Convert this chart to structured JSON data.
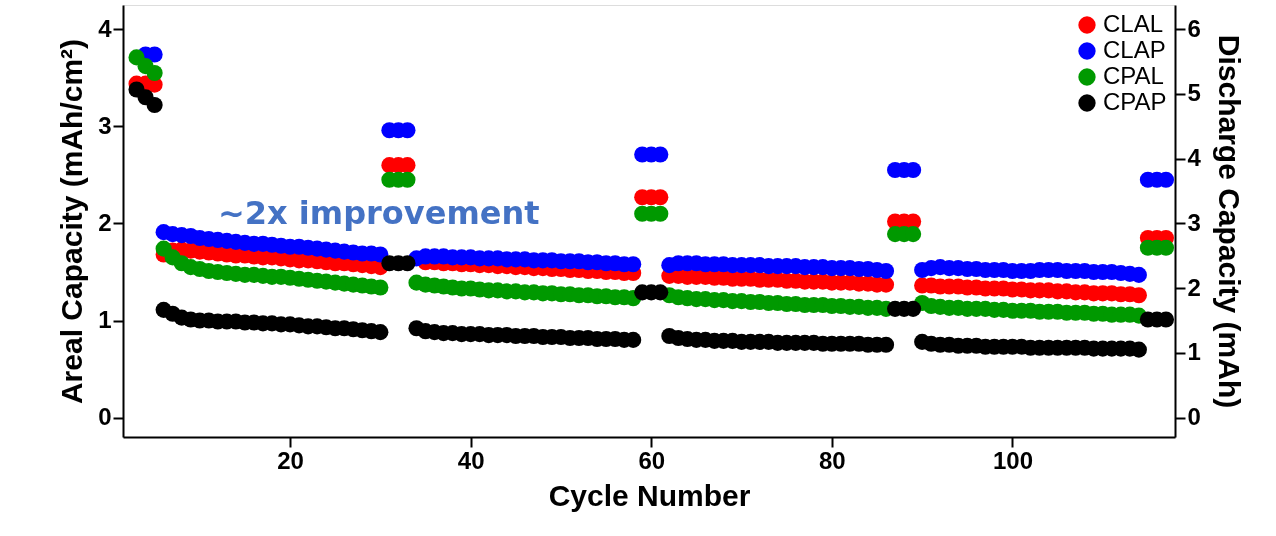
{
  "chart_data": {
    "type": "scatter",
    "xlabel": "Cycle Number",
    "ylabel": "Areal Capacity (mAh/cm²)",
    "y2label": "Discharge Capacity (mAh)",
    "annotations": [
      "~2x improvement"
    ],
    "x": [
      3,
      4,
      5,
      6,
      7,
      8,
      9,
      10,
      11,
      12,
      13,
      14,
      15,
      16,
      17,
      18,
      19,
      20,
      21,
      22,
      23,
      24,
      25,
      26,
      27,
      28,
      29,
      30,
      31,
      32,
      33,
      34,
      35,
      36,
      37,
      38,
      39,
      40,
      41,
      42,
      43,
      44,
      45,
      46,
      47,
      48,
      49,
      50,
      51,
      52,
      53,
      54,
      55,
      56,
      57,
      58,
      59,
      60,
      61,
      62,
      63,
      64,
      65,
      66,
      67,
      68,
      69,
      70,
      71,
      72,
      73,
      74,
      75,
      76,
      77,
      78,
      79,
      80,
      81,
      82,
      83,
      84,
      85,
      86,
      87,
      88,
      89,
      90,
      91,
      92,
      93,
      94,
      95,
      96,
      97,
      98,
      99,
      100,
      101,
      102,
      103,
      104,
      105,
      106,
      107,
      108,
      109,
      110,
      111,
      112,
      113,
      114,
      115,
      116,
      117
    ],
    "series": [
      {
        "name": "CLAL",
        "color": "#ff0000",
        "values": [
          3.44,
          3.44,
          3.43,
          1.68,
          1.72,
          1.73,
          1.72,
          1.71,
          1.7,
          1.69,
          1.68,
          1.67,
          1.67,
          1.66,
          1.65,
          1.65,
          1.64,
          1.63,
          1.62,
          1.62,
          1.61,
          1.6,
          1.59,
          1.59,
          1.58,
          1.57,
          1.56,
          1.55,
          2.6,
          2.6,
          2.6,
          null,
          1.6,
          1.6,
          1.59,
          1.59,
          1.58,
          1.58,
          1.57,
          1.57,
          1.56,
          1.56,
          1.55,
          1.55,
          1.54,
          1.54,
          1.53,
          1.53,
          1.52,
          1.52,
          1.51,
          1.51,
          1.5,
          1.5,
          1.49,
          1.49,
          2.27,
          2.27,
          2.27,
          1.46,
          1.46,
          1.45,
          1.45,
          1.45,
          1.44,
          1.44,
          1.43,
          1.43,
          1.43,
          1.42,
          1.42,
          1.42,
          1.41,
          1.41,
          1.4,
          1.4,
          1.4,
          1.39,
          1.39,
          1.39,
          1.38,
          1.38,
          1.37,
          1.37,
          2.02,
          2.02,
          2.02,
          1.36,
          1.36,
          1.35,
          1.35,
          1.35,
          1.34,
          1.34,
          1.33,
          1.33,
          1.33,
          1.32,
          1.32,
          1.31,
          1.31,
          1.31,
          1.3,
          1.3,
          1.29,
          1.29,
          1.28,
          1.28,
          1.28,
          1.27,
          1.27,
          1.26,
          1.85,
          1.85,
          1.85
        ]
      },
      {
        "name": "CLAP",
        "color": "#0000ff",
        "values": [
          null,
          3.74,
          3.74,
          1.91,
          1.89,
          1.88,
          1.87,
          1.85,
          1.84,
          1.83,
          1.82,
          1.81,
          1.8,
          1.79,
          1.79,
          1.78,
          1.77,
          1.76,
          1.76,
          1.75,
          1.74,
          1.73,
          1.72,
          1.71,
          1.7,
          1.69,
          1.69,
          1.68,
          2.96,
          2.96,
          2.96,
          1.64,
          1.66,
          1.66,
          1.66,
          1.65,
          1.65,
          1.65,
          1.64,
          1.64,
          1.64,
          1.63,
          1.63,
          1.63,
          1.62,
          1.62,
          1.62,
          1.61,
          1.61,
          1.61,
          1.6,
          1.6,
          1.59,
          1.59,
          1.58,
          1.58,
          2.71,
          2.71,
          2.71,
          1.57,
          1.59,
          1.59,
          1.59,
          1.58,
          1.58,
          1.58,
          1.57,
          1.57,
          1.57,
          1.57,
          1.56,
          1.56,
          1.56,
          1.56,
          1.55,
          1.55,
          1.55,
          1.54,
          1.54,
          1.54,
          1.53,
          1.53,
          1.52,
          1.51,
          2.55,
          2.55,
          2.55,
          1.52,
          1.54,
          1.55,
          1.54,
          1.54,
          1.53,
          1.53,
          1.52,
          1.52,
          1.52,
          1.51,
          1.51,
          1.51,
          1.52,
          1.52,
          1.52,
          1.51,
          1.51,
          1.51,
          1.5,
          1.5,
          1.5,
          1.49,
          1.48,
          1.47,
          2.45,
          2.45,
          2.45
        ]
      },
      {
        "name": "CPAL",
        "color": "#009900",
        "values": [
          3.71,
          3.62,
          3.55,
          1.74,
          1.65,
          1.59,
          1.55,
          1.53,
          1.51,
          1.5,
          1.49,
          1.48,
          1.47,
          1.47,
          1.46,
          1.45,
          1.45,
          1.44,
          1.43,
          1.42,
          1.41,
          1.4,
          1.39,
          1.38,
          1.37,
          1.36,
          1.35,
          1.34,
          2.45,
          2.45,
          2.45,
          1.39,
          1.37,
          1.36,
          1.35,
          1.34,
          1.33,
          1.33,
          1.32,
          1.31,
          1.31,
          1.3,
          1.3,
          1.29,
          1.29,
          1.28,
          1.28,
          1.27,
          1.27,
          1.26,
          1.26,
          1.25,
          1.25,
          1.24,
          1.24,
          1.23,
          2.1,
          2.1,
          2.1,
          1.26,
          1.24,
          1.23,
          1.22,
          1.22,
          1.21,
          1.21,
          1.2,
          1.2,
          1.19,
          1.19,
          1.18,
          1.18,
          1.17,
          1.17,
          1.16,
          1.16,
          1.16,
          1.15,
          1.15,
          1.14,
          1.14,
          1.13,
          1.13,
          1.12,
          1.89,
          1.89,
          1.89,
          1.18,
          1.15,
          1.14,
          1.13,
          1.13,
          1.12,
          1.12,
          1.12,
          1.11,
          1.11,
          1.1,
          1.1,
          1.1,
          1.09,
          1.09,
          1.09,
          1.08,
          1.08,
          1.08,
          1.07,
          1.07,
          1.06,
          1.06,
          1.06,
          1.05,
          1.75,
          1.75,
          1.75
        ]
      },
      {
        "name": "CPAP",
        "color": "#000000",
        "values": [
          3.38,
          3.3,
          3.22,
          1.11,
          1.07,
          1.03,
          1.01,
          1.0,
          1.0,
          0.99,
          0.99,
          0.99,
          0.98,
          0.98,
          0.97,
          0.97,
          0.96,
          0.96,
          0.95,
          0.94,
          0.94,
          0.93,
          0.92,
          0.92,
          0.91,
          0.9,
          0.89,
          0.88,
          1.59,
          1.59,
          1.59,
          0.92,
          0.89,
          0.88,
          0.87,
          0.87,
          0.86,
          0.86,
          0.86,
          0.85,
          0.85,
          0.85,
          0.84,
          0.84,
          0.84,
          0.83,
          0.83,
          0.83,
          0.82,
          0.82,
          0.82,
          0.81,
          0.81,
          0.81,
          0.8,
          0.8,
          1.29,
          1.29,
          1.29,
          0.84,
          0.82,
          0.81,
          0.8,
          0.8,
          0.79,
          0.79,
          0.79,
          0.78,
          0.78,
          0.78,
          0.78,
          0.77,
          0.77,
          0.77,
          0.77,
          0.77,
          0.76,
          0.76,
          0.76,
          0.76,
          0.76,
          0.75,
          0.75,
          0.75,
          1.12,
          1.12,
          1.12,
          0.78,
          0.76,
          0.75,
          0.75,
          0.74,
          0.74,
          0.74,
          0.73,
          0.73,
          0.73,
          0.73,
          0.73,
          0.72,
          0.72,
          0.72,
          0.72,
          0.72,
          0.72,
          0.72,
          0.71,
          0.71,
          0.71,
          0.71,
          0.71,
          0.7,
          1.01,
          1.01,
          1.01
        ]
      }
    ],
    "xlim": [
      1.5,
      118
    ],
    "xticks": [
      20,
      40,
      60,
      80,
      100
    ],
    "ylim": [
      -0.2,
      4.25
    ],
    "yticks": [
      0,
      1,
      2,
      3,
      4
    ],
    "y2lim": [
      -0.3,
      6.375
    ],
    "y2ticks": [
      0,
      1,
      2,
      3,
      4,
      5,
      6
    ],
    "grid": false,
    "legend": "top right",
    "marker": "circle"
  }
}
